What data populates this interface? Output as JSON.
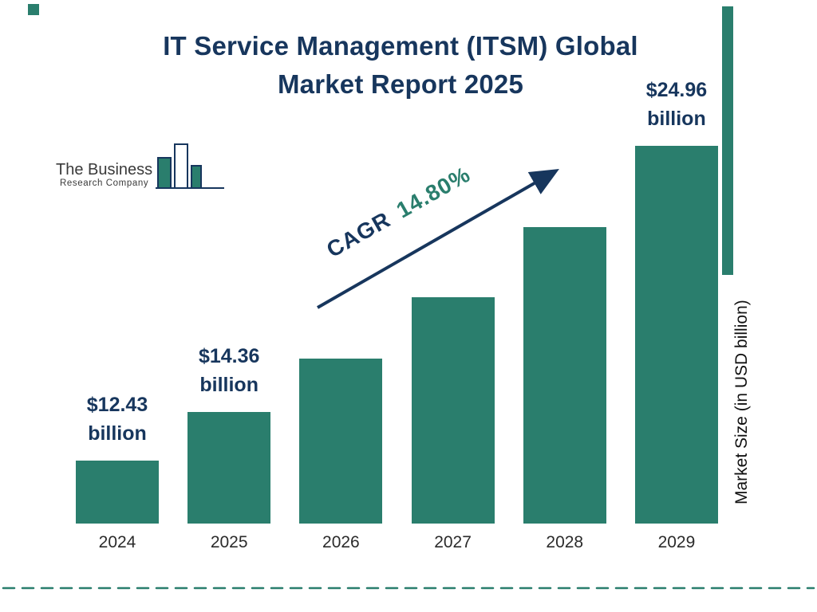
{
  "header": {
    "title_line1": "IT Service Management (ITSM) Global",
    "title_line2": "Market Report 2025"
  },
  "logo": {
    "name_line1": "The Business",
    "name_line2": "Research Company"
  },
  "annotation": {
    "cagr_label": "CAGR",
    "cagr_value": "14.80%"
  },
  "axes": {
    "y_label": "Market Size (in USD billion)"
  },
  "chart_data": {
    "type": "bar",
    "title": "IT Service Management (ITSM) Global Market Report 2025",
    "ylabel": "Market Size (in USD billion)",
    "unit": "USD billion",
    "cagr_percent": 14.8,
    "legend": "none",
    "grid": false,
    "categories": [
      "2024",
      "2025",
      "2026",
      "2027",
      "2028",
      "2029"
    ],
    "values": [
      12.43,
      14.36,
      16.49,
      18.93,
      21.73,
      24.96
    ],
    "value_labels_shown_for": [
      "2024",
      "2025",
      "2029"
    ],
    "bars": [
      {
        "year": "2024",
        "value": 12.43,
        "label_amount": "$12.43",
        "label_unit": "billion"
      },
      {
        "year": "2025",
        "value": 14.36,
        "label_amount": "$14.36",
        "label_unit": "billion"
      },
      {
        "year": "2026",
        "value": 16.49
      },
      {
        "year": "2027",
        "value": 18.93
      },
      {
        "year": "2028",
        "value": 21.73
      },
      {
        "year": "2029",
        "value": 24.96,
        "label_amount": "$24.96",
        "label_unit": "billion"
      }
    ]
  },
  "colors": {
    "teal": "#2a7e6d",
    "navy": "#17365d",
    "background": "#ffffff"
  }
}
